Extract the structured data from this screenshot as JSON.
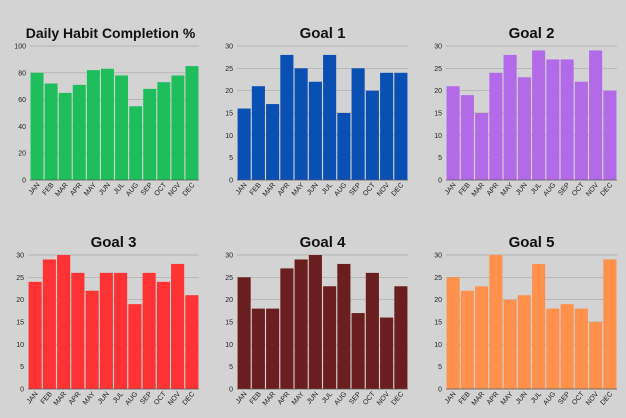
{
  "chart_data": [
    {
      "type": "bar",
      "title": "Daily Habit Completion %",
      "color": "#1ebe5d",
      "categories": [
        "JAN",
        "FEB",
        "MAR",
        "APR",
        "MAY",
        "JUN",
        "JUL",
        "AUG",
        "SEP",
        "OCT",
        "NOV",
        "DEC"
      ],
      "values": [
        80,
        72,
        65,
        71,
        82,
        83,
        78,
        55,
        68,
        73,
        78,
        85
      ],
      "ylim": [
        0,
        100
      ],
      "yticks": [
        0,
        20,
        40,
        60,
        80,
        100
      ],
      "grid": true
    },
    {
      "type": "bar",
      "title": "Goal 1",
      "color": "#0a4fb4",
      "categories": [
        "JAN",
        "FEB",
        "MAR",
        "APR",
        "MAY",
        "JUN",
        "JUL",
        "AUG",
        "SEP",
        "OCT",
        "NOV",
        "DEC"
      ],
      "values": [
        16,
        21,
        17,
        28,
        25,
        22,
        28,
        15,
        25,
        20,
        24,
        24
      ],
      "ylim": [
        0,
        30
      ],
      "yticks": [
        0,
        5,
        10,
        15,
        20,
        25,
        30
      ],
      "grid": true
    },
    {
      "type": "bar",
      "title": "Goal 2",
      "color": "#b36ae8",
      "categories": [
        "JAN",
        "FEB",
        "MAR",
        "APR",
        "MAY",
        "JUN",
        "JUL",
        "AUG",
        "SEP",
        "OCT",
        "NOV",
        "DEC"
      ],
      "values": [
        21,
        19,
        15,
        24,
        28,
        23,
        29,
        27,
        27,
        22,
        29,
        20
      ],
      "ylim": [
        0,
        30
      ],
      "yticks": [
        0,
        5,
        10,
        15,
        20,
        25,
        30
      ],
      "grid": true
    },
    {
      "type": "bar",
      "title": "Goal 3",
      "color": "#ff3333",
      "categories": [
        "JAN",
        "FEB",
        "MAR",
        "APR",
        "MAY",
        "JUN",
        "JUL",
        "AUG",
        "SEP",
        "OCT",
        "NOV",
        "DEC"
      ],
      "values": [
        24,
        29,
        30,
        26,
        22,
        26,
        26,
        19,
        26,
        24,
        28,
        21
      ],
      "ylim": [
        0,
        30
      ],
      "yticks": [
        0,
        5,
        10,
        15,
        20,
        25,
        30
      ],
      "grid": true
    },
    {
      "type": "bar",
      "title": "Goal 4",
      "color": "#6b1e1e",
      "categories": [
        "JAN",
        "FEB",
        "MAR",
        "APR",
        "MAY",
        "JUN",
        "JUL",
        "AUG",
        "SEP",
        "OCT",
        "NOV",
        "DEC"
      ],
      "values": [
        25,
        18,
        18,
        27,
        29,
        30,
        23,
        28,
        17,
        26,
        16,
        23
      ],
      "ylim": [
        0,
        30
      ],
      "yticks": [
        0,
        5,
        10,
        15,
        20,
        25,
        30
      ],
      "grid": true
    },
    {
      "type": "bar",
      "title": "Goal 5",
      "color": "#ff914d",
      "categories": [
        "JAN",
        "FEB",
        "MAR",
        "APR",
        "MAY",
        "JUN",
        "JUL",
        "AUG",
        "SEP",
        "OCT",
        "NOV",
        "DEC"
      ],
      "values": [
        25,
        22,
        23,
        30,
        20,
        21,
        28,
        18,
        19,
        18,
        15,
        29
      ],
      "ylim": [
        0,
        30
      ],
      "yticks": [
        0,
        5,
        10,
        15,
        20,
        25,
        30
      ],
      "grid": true
    }
  ]
}
